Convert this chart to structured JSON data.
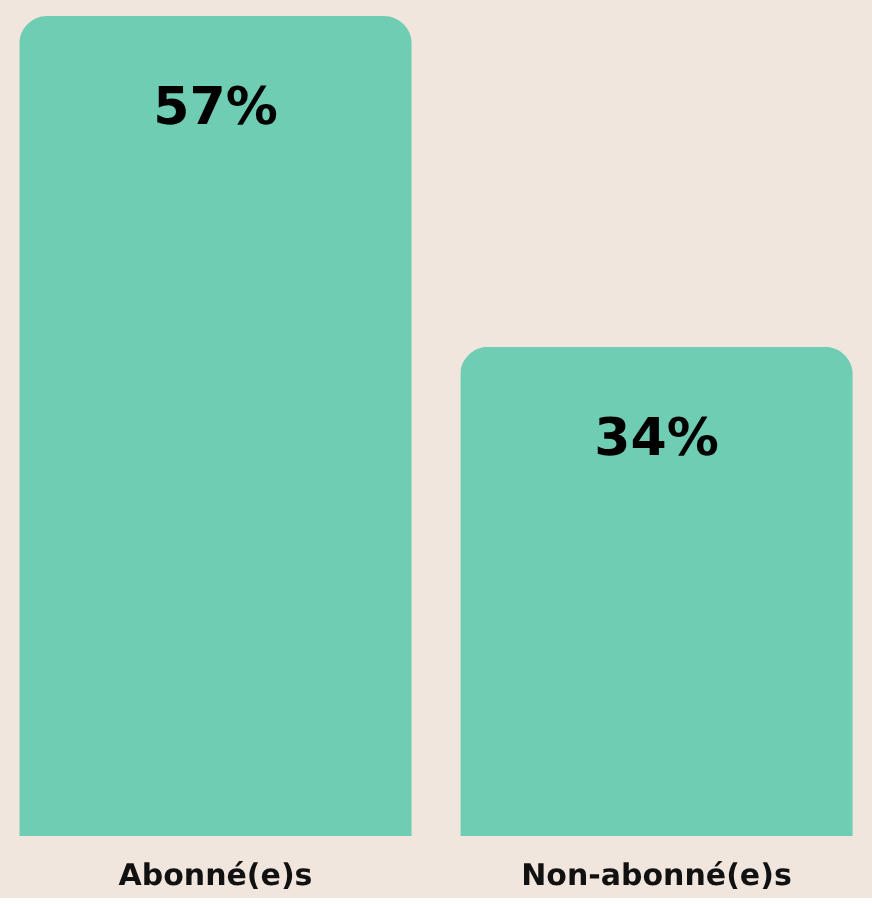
{
  "chart_data": {
    "type": "bar",
    "categories": [
      "Abonné(e)s",
      "Non-abonné(e)s"
    ],
    "values": [
      57,
      34
    ],
    "value_labels": [
      "57%",
      "34%"
    ],
    "color": "#6ecdb3",
    "grid": false
  }
}
